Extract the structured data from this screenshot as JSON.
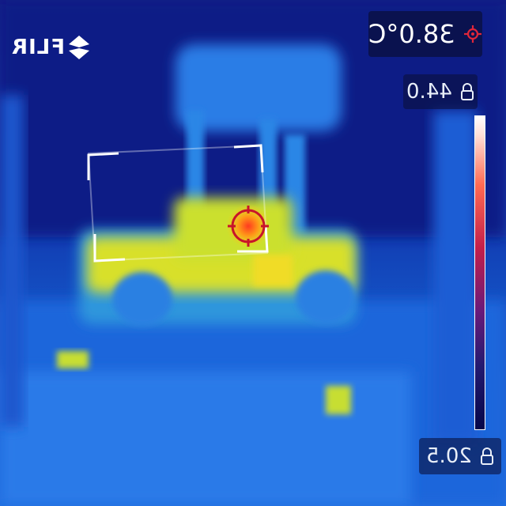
{
  "brand": {
    "logo_text": "FLIR"
  },
  "spot_meter": {
    "value": "38.0°C",
    "icon": "crosshair-icon"
  },
  "scale": {
    "max_value": "44.0",
    "min_value": "20.5",
    "lock_icon": "lock-icon"
  },
  "colors": {
    "accent_red": "#e0263a",
    "overlay_bg": "#0a0f3c",
    "scale_top": "#ffffff",
    "scale_bottom": "#05064a"
  }
}
